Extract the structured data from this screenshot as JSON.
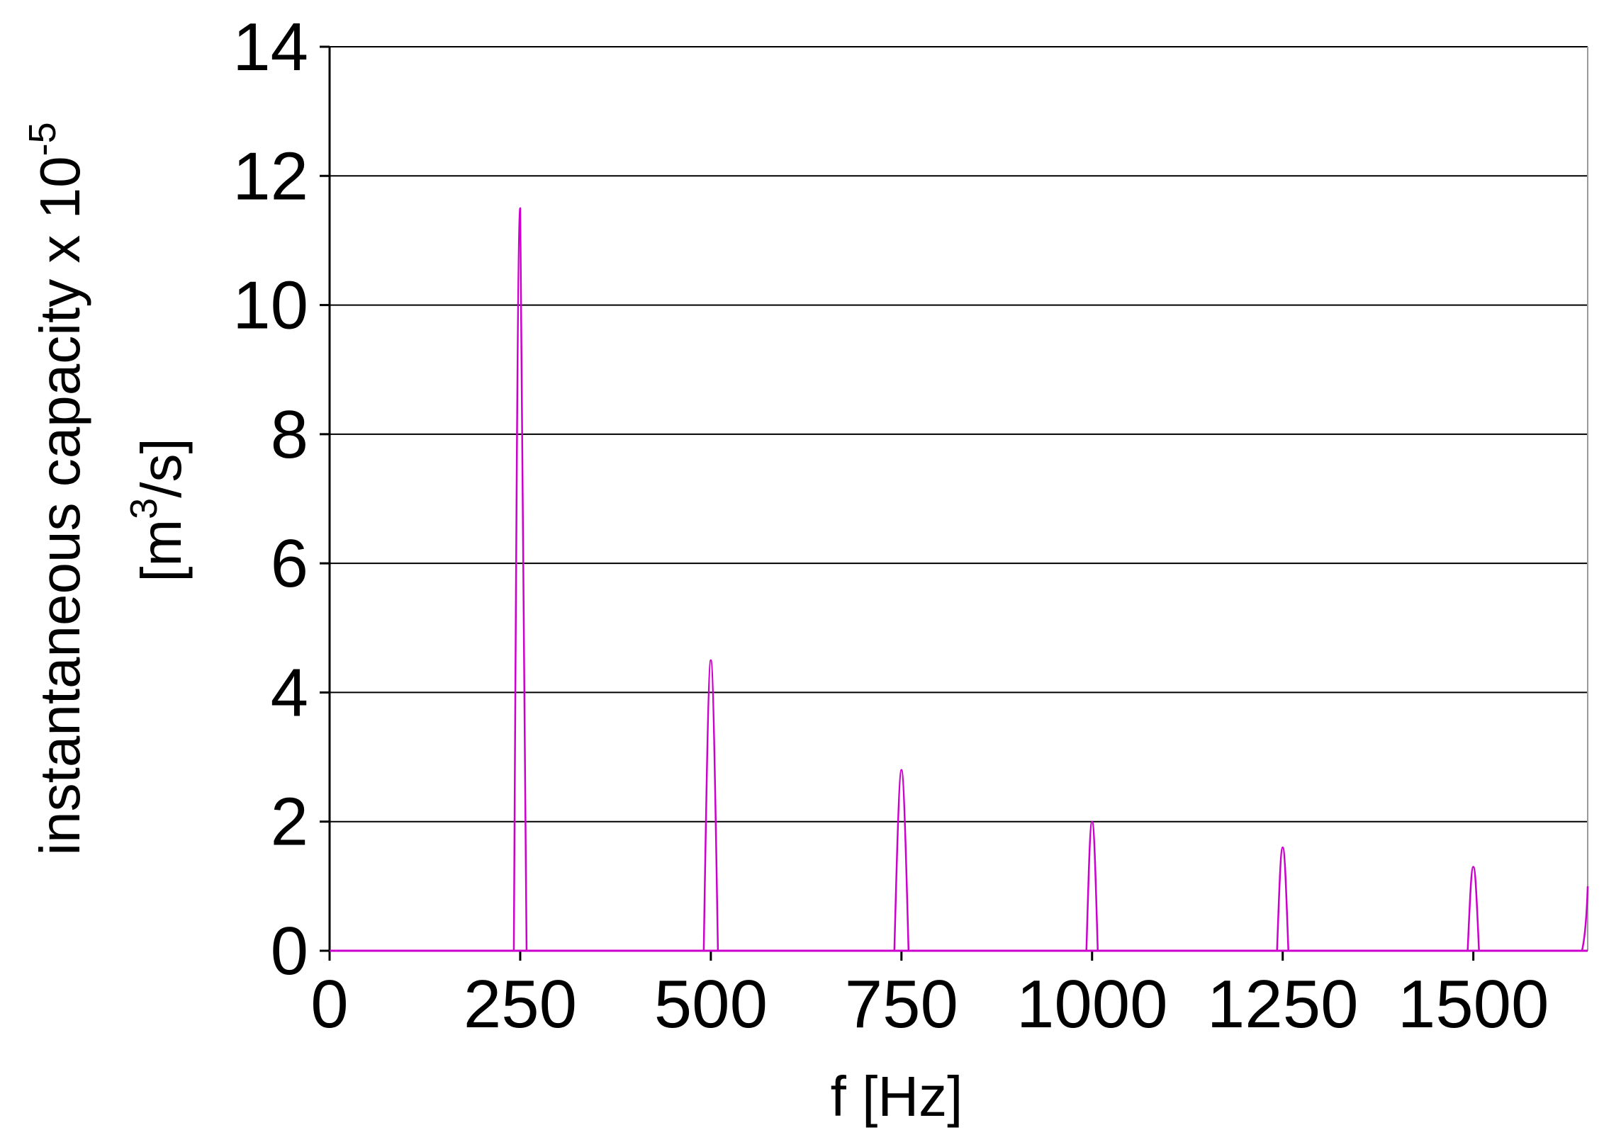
{
  "chart_data": {
    "type": "line",
    "title": "",
    "xlabel": "f [Hz]",
    "ylabel": {
      "line1_prefix": "instantaneous capacity x 10",
      "line1_sup": "-5",
      "line2_prefix": "[m",
      "line2_sup": "3",
      "line2_suffix": "/s]"
    },
    "xlim": [
      0,
      1650
    ],
    "ylim": [
      0,
      14
    ],
    "x_ticks": [
      0,
      250,
      500,
      750,
      1000,
      1250,
      1500
    ],
    "y_ticks": [
      0,
      2,
      4,
      6,
      8,
      10,
      12,
      14
    ],
    "grid": "horizontal",
    "legend": "none",
    "series": [
      {
        "color": "#cc00cc",
        "peaks": [
          {
            "x": 250,
            "y": 11.5
          },
          {
            "x": 500,
            "y": 4.5
          },
          {
            "x": 750,
            "y": 2.8
          },
          {
            "x": 1000,
            "y": 2.0
          },
          {
            "x": 1250,
            "y": 1.6
          },
          {
            "x": 1500,
            "y": 1.3
          },
          {
            "x": 1650,
            "y": 1.0
          }
        ]
      }
    ]
  }
}
